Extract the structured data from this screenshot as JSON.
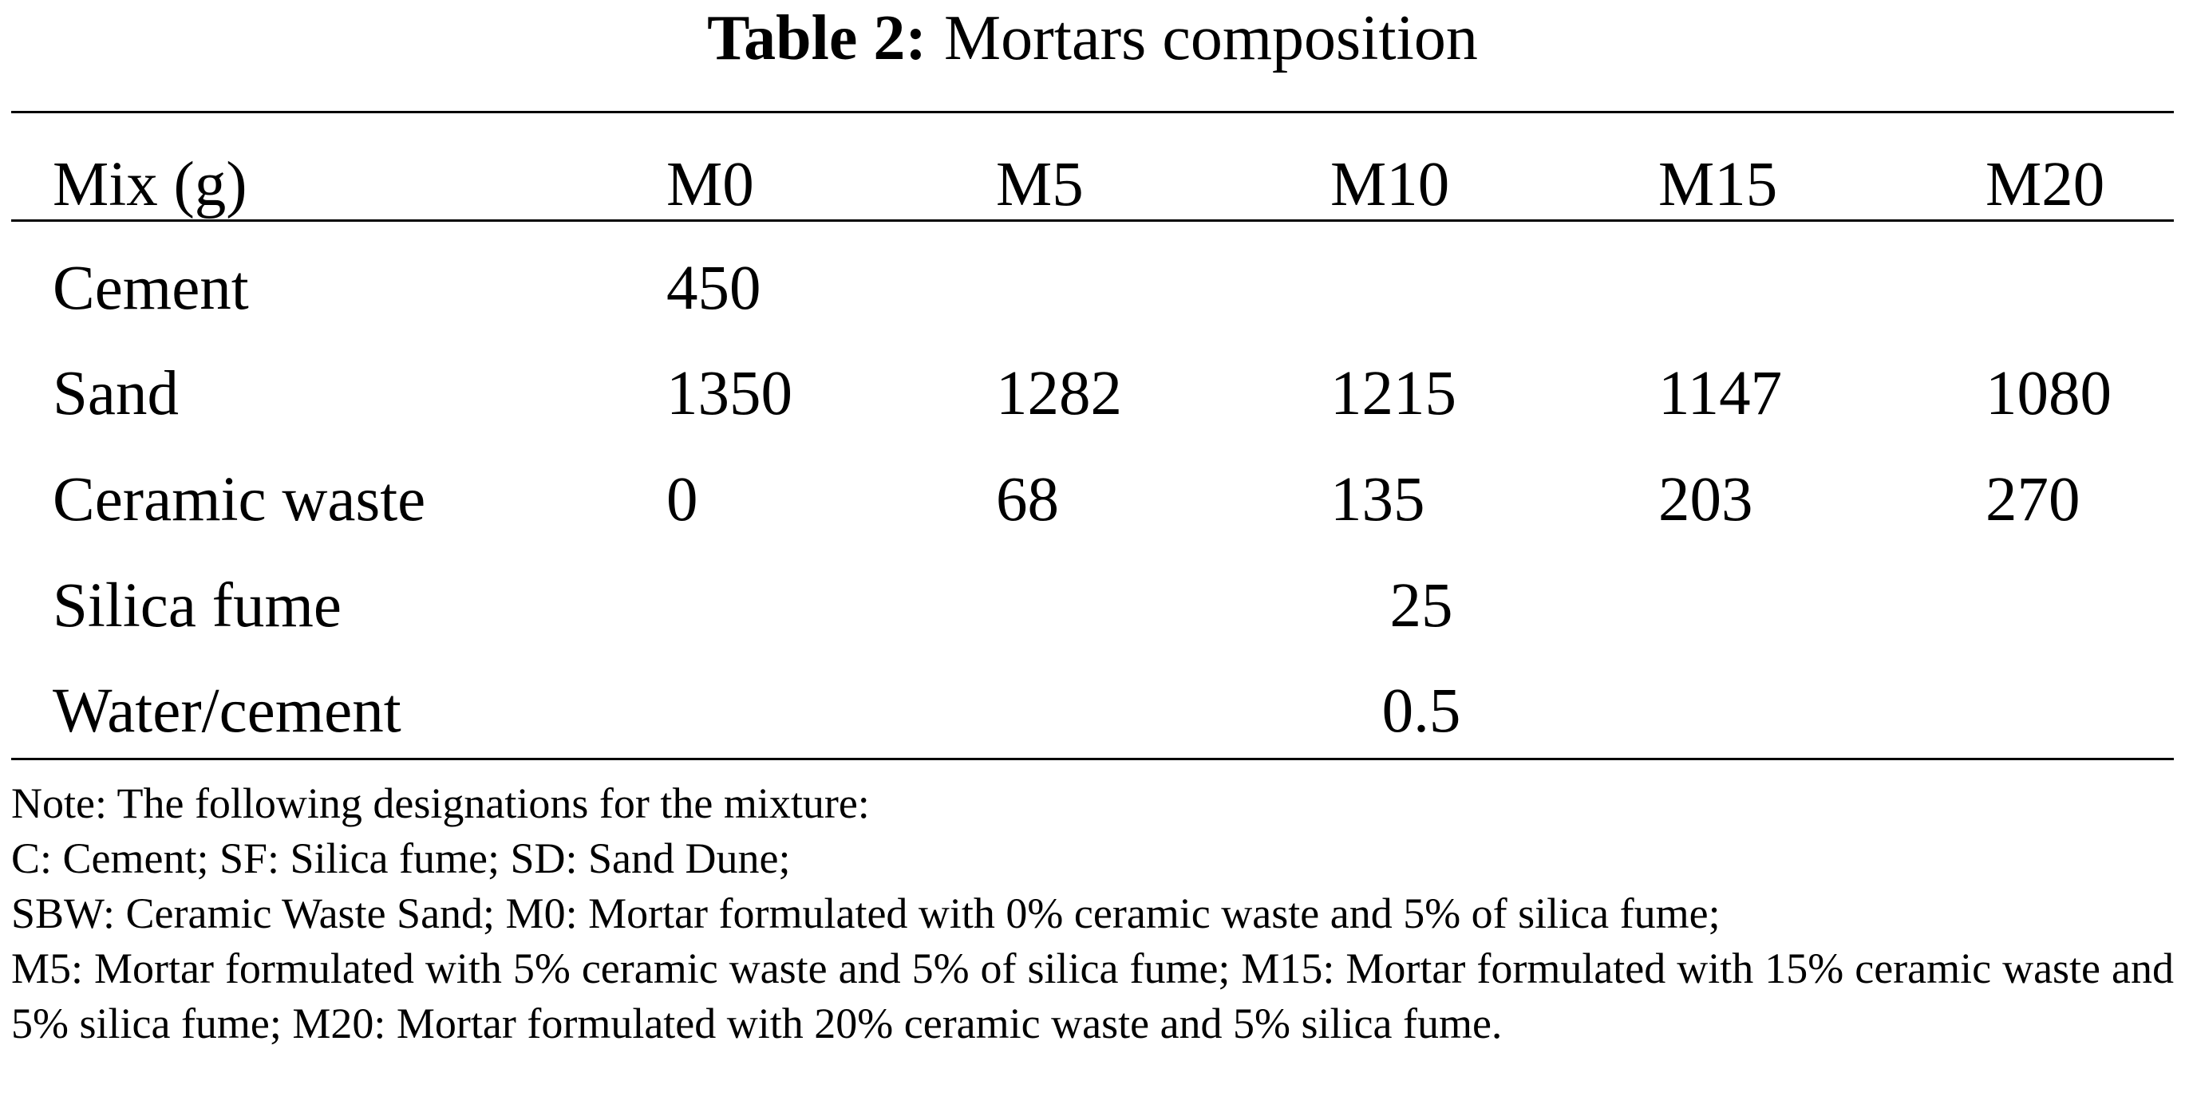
{
  "title": {
    "label": "Table 2:",
    "text": "Mortars composition"
  },
  "table": {
    "header": [
      "Mix (g)",
      "M0",
      "M5",
      "M10",
      "M15",
      "M20"
    ],
    "rows": [
      [
        "Cement",
        450
      ],
      [
        "Sand",
        1350,
        1282,
        1215,
        1147,
        1080
      ],
      [
        "Ceramic waste",
        0,
        68,
        135,
        203,
        270
      ],
      [
        "Silica fume",
        25
      ],
      [
        "Water/cement",
        0.5
      ]
    ]
  },
  "notes": [
    "Note: The following designations for the mixture:",
    "C: Cement; SF: Silica fume; SD: Sand Dune;",
    "SBW: Ceramic Waste Sand; M0: Mortar formulated with 0% ceramic waste and 5% of silica fume;",
    "M5: Mortar formulated with 5% ceramic waste and 5% of silica fume; M15: Mortar formulated with 15% ceramic waste and 5% silica fume; M20: Mortar formulated with 20% ceramic waste and 5% silica fume."
  ]
}
